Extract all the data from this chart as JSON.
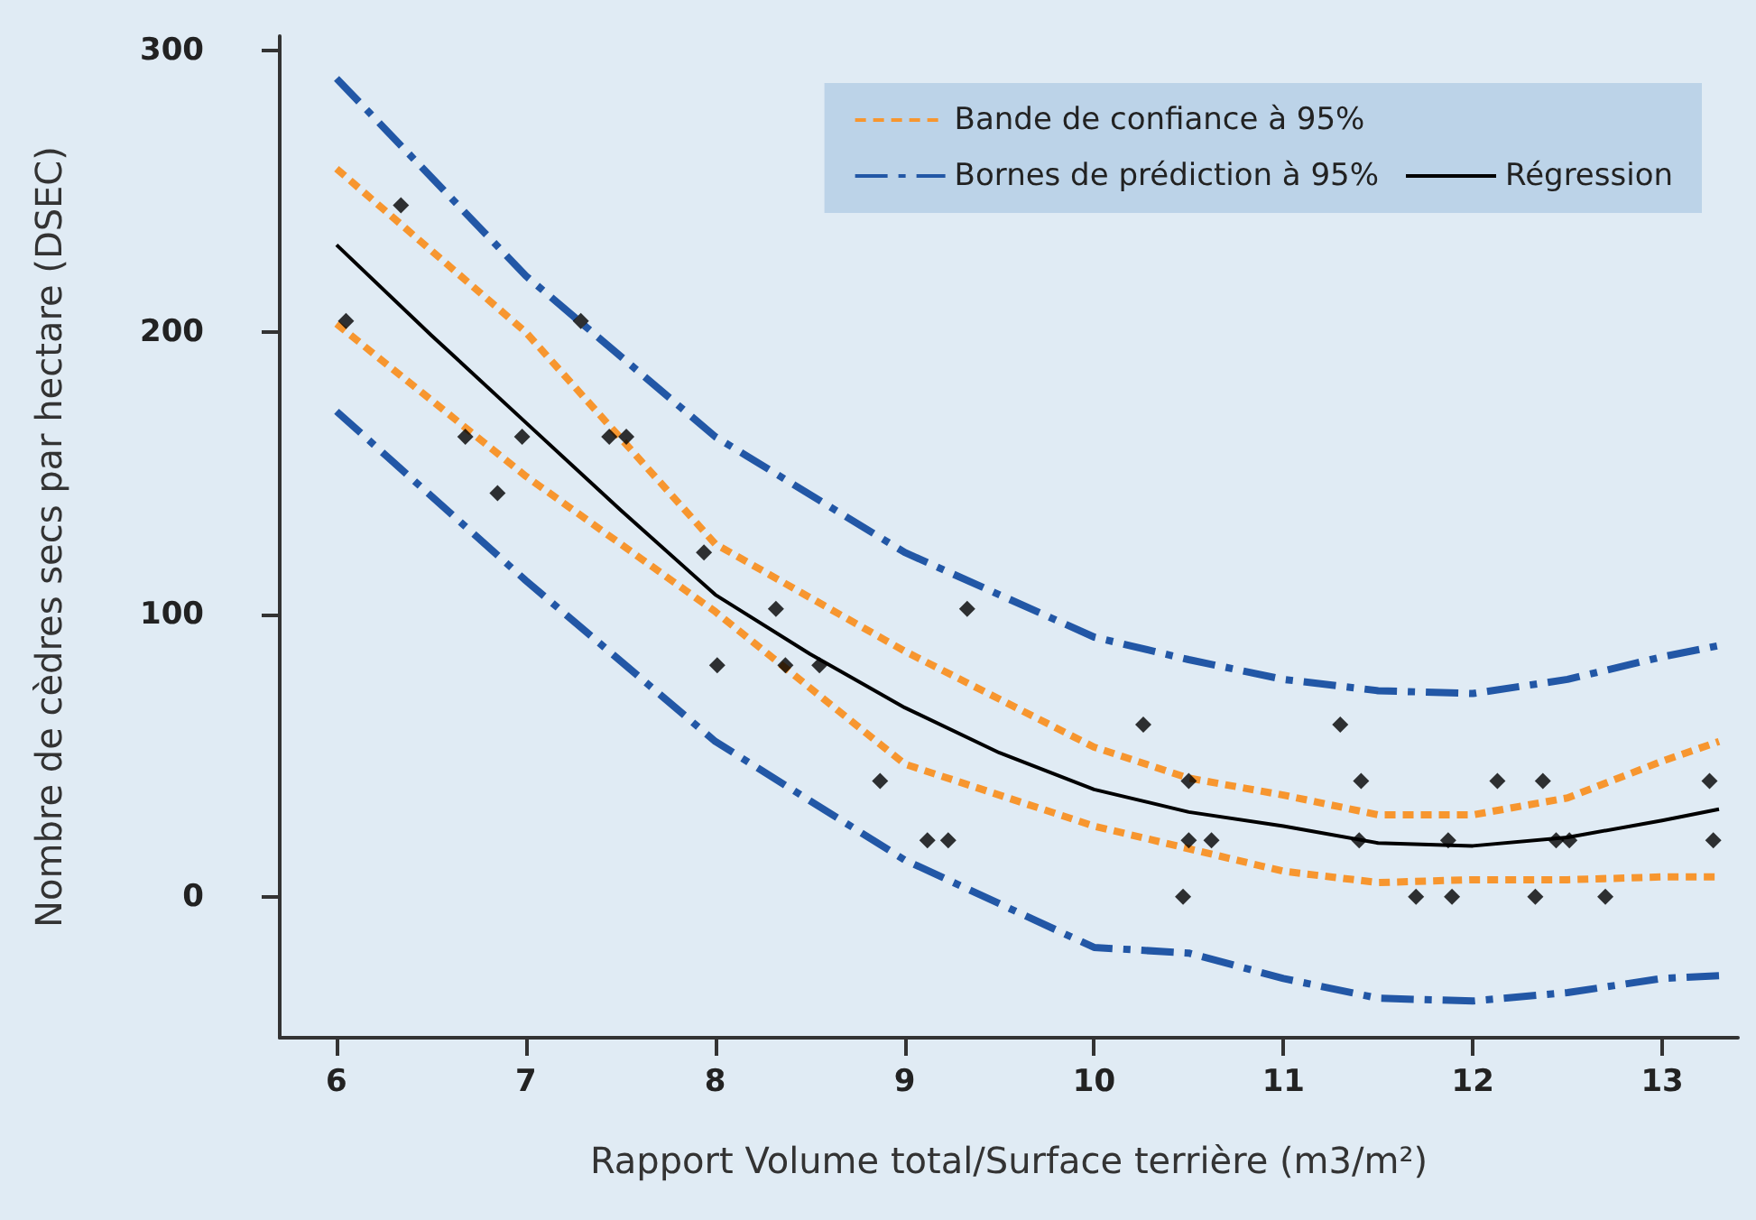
{
  "chart_data": {
    "type": "line",
    "xlabel": "Rapport Volume total/Surface terrière (m3/m²)",
    "ylabel": "Nombre de cèdres secs par hectare (DSEC)",
    "xlim": [
      5.7,
      13.4
    ],
    "ylim": [
      -50,
      305
    ],
    "xticks": [
      6,
      7,
      8,
      9,
      10,
      11,
      12,
      13
    ],
    "yticks": [
      0,
      100,
      200,
      300
    ],
    "grid": false,
    "legend": "top right",
    "series": [
      {
        "name": "Bande de confiance à 95%",
        "color": "#f7962f",
        "line_style": "dashed",
        "x": [
          6,
          7,
          8,
          9,
          10,
          10.5,
          11,
          11.5,
          12,
          12.5,
          13,
          13.3
        ],
        "values": [
          258,
          200,
          125,
          87,
          53,
          42,
          36,
          29,
          29,
          35,
          48,
          55
        ]
      },
      {
        "color": "#f7962f",
        "line_style": "dashed",
        "x": [
          6,
          7,
          8,
          9,
          10,
          10.5,
          11,
          11.5,
          12,
          12.5,
          13,
          13.3
        ],
        "values": [
          203,
          149,
          101,
          47,
          25,
          17,
          9,
          5,
          6,
          6,
          7,
          7
        ]
      },
      {
        "name": "Bornes de prédiction à 95%",
        "color": "#2257a6",
        "line_style": "dashdot",
        "x": [
          6,
          7,
          8,
          9,
          10,
          10.5,
          11,
          11.5,
          12,
          12.5,
          13,
          13.3
        ],
        "values": [
          290,
          220,
          163,
          122,
          92,
          84,
          77,
          73,
          72,
          77,
          85,
          89
        ]
      },
      {
        "color": "#2257a6",
        "line_style": "dashdot",
        "x": [
          6,
          7,
          8,
          9,
          10,
          10.5,
          11,
          11.5,
          12,
          12.5,
          13,
          13.3
        ],
        "values": [
          172,
          112,
          55,
          13,
          -18,
          -20,
          -29,
          -36,
          -37,
          -34,
          -29,
          -28
        ]
      },
      {
        "name": "Régression",
        "color": "#000000",
        "line_style": "solid",
        "x": [
          6,
          6.5,
          7,
          7.5,
          8,
          8.5,
          9,
          9.5,
          10,
          10.5,
          11,
          11.5,
          12,
          12.5,
          13,
          13.3
        ],
        "values": [
          231,
          199,
          168,
          137,
          107,
          86,
          67,
          51,
          38,
          30,
          25,
          19,
          18,
          21,
          27,
          31
        ]
      },
      {
        "type": "scatter",
        "color": "#000000",
        "marker": "diamond",
        "x": [
          6.05,
          6.34,
          6.68,
          6.85,
          6.98,
          7.29,
          7.44,
          7.53,
          7.94,
          8.01,
          8.32,
          8.37,
          8.55,
          8.87,
          9.12,
          9.23,
          9.33,
          10.26,
          10.5,
          10.5,
          10.47,
          10.62,
          11.3,
          11.41,
          11.4,
          11.7,
          11.87,
          11.89,
          12.13,
          12.37,
          12.44,
          12.51,
          12.33,
          12.7,
          13.25,
          13.27
        ],
        "values": [
          204,
          245,
          163,
          143,
          163,
          204,
          163,
          163,
          122,
          82,
          102,
          82,
          82,
          41,
          20,
          20,
          102,
          61,
          41,
          20,
          0,
          20,
          61,
          41,
          20,
          0,
          20,
          0,
          41,
          41,
          20,
          20,
          0,
          0,
          41,
          20
        ]
      }
    ]
  }
}
